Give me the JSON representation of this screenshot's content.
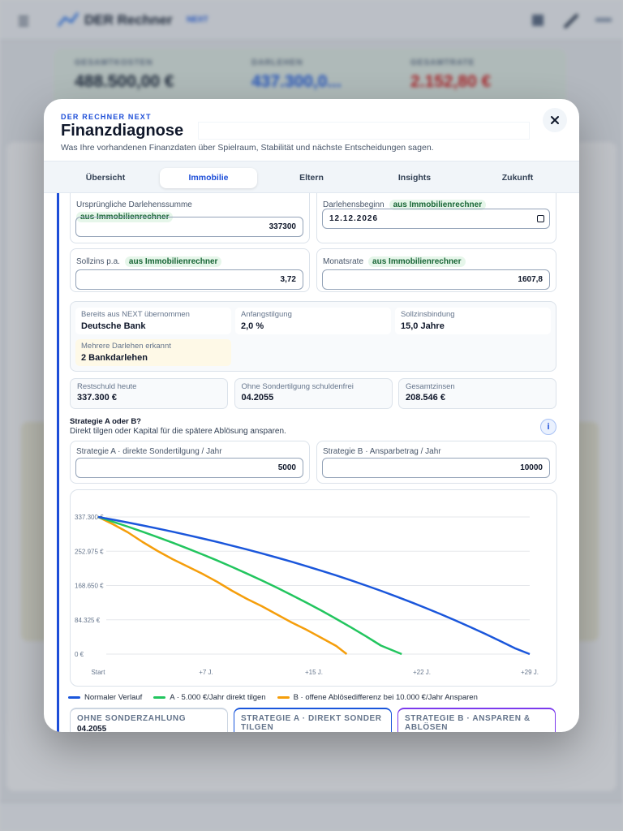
{
  "background": {
    "app_name": "DER Rechner",
    "app_badge": "NEXT",
    "stats": [
      {
        "label": "GESAMTKOSTEN",
        "value": "488.500,00 €"
      },
      {
        "label": "DARLEHEN",
        "value": "437.300,0..."
      },
      {
        "label": "GESAMTRATE",
        "value": "2.152,80 €"
      }
    ]
  },
  "header": {
    "brand": "DER RECHNER NEXT",
    "title": "Finanzdiagnose",
    "subtitle": "Was Ihre vorhandenen Finanzdaten über Spielraum, Stabilität und nächste Entscheidungen sagen."
  },
  "tabs": [
    "Übersicht",
    "Immobilie",
    "Eltern",
    "Insights",
    "Zukunft"
  ],
  "active_tab": 1,
  "fields": [
    {
      "label": "Ursprüngliche Darlehenssumme",
      "badge": "aus Immobilienrechner",
      "value": "337300"
    },
    {
      "label": "Darlehensbeginn",
      "badge": "aus Immobilienrechner",
      "value": "12.12.2026"
    },
    {
      "label": "Sollzins p.a.",
      "badge": "aus Immobilienrechner",
      "value": "3,72"
    },
    {
      "label": "Monatsrate",
      "badge": "aus Immobilienrechner",
      "value": "1607,8"
    }
  ],
  "info": [
    {
      "label": "Bereits aus NEXT übernommen",
      "value": "Deutsche Bank",
      "highlight": false
    },
    {
      "label": "Anfangstilgung",
      "value": "2,0 %",
      "highlight": false
    },
    {
      "label": "Sollzinsbindung",
      "value": "15,0 Jahre",
      "highlight": false
    },
    {
      "label": "Mehrere Darlehen erkannt",
      "value": "2 Bankdarlehen",
      "highlight": true
    }
  ],
  "summary": [
    {
      "label": "Restschuld heute",
      "value": "337.300 €"
    },
    {
      "label": "Ohne Sondertilgung schuldenfrei",
      "value": "04.2055"
    },
    {
      "label": "Gesamtzinsen",
      "value": "208.546 €"
    }
  ],
  "strategy": {
    "title": "Strategie A oder B?",
    "description": "Direkt tilgen oder Kapital für die spätere Ablösung ansparen.",
    "info_icon": "i",
    "inputs": [
      {
        "label": "Strategie A · direkte Sondertilgung / Jahr",
        "value": "5000"
      },
      {
        "label": "Strategie B · Ansparbetrag / Jahr",
        "value": "10000"
      }
    ]
  },
  "chart_data": {
    "type": "line",
    "xlim": [
      0,
      29
    ],
    "ylim": [
      0,
      337300
    ],
    "xticks": [
      {
        "value": 0,
        "label": "Start"
      },
      {
        "value": 7.25,
        "label": "+7 J."
      },
      {
        "value": 14.5,
        "label": "+15 J."
      },
      {
        "value": 21.75,
        "label": "+22 J."
      },
      {
        "value": 29,
        "label": "+29 J."
      }
    ],
    "yticks": [
      {
        "value": 0,
        "label": "0 €"
      },
      {
        "value": 84325,
        "label": "84.325 €"
      },
      {
        "value": 168650,
        "label": "168.650 €"
      },
      {
        "value": 252975,
        "label": "252.975 €"
      },
      {
        "value": 337300,
        "label": "337.300 €"
      }
    ],
    "grid": true,
    "legend": "bottom",
    "series": [
      {
        "name": "Normaler Verlauf",
        "color": "#1a56db",
        "x": [
          0,
          1,
          2,
          3,
          4,
          5,
          6,
          7,
          8,
          9,
          10,
          11,
          12,
          13,
          14,
          15,
          16,
          17,
          18,
          19,
          20,
          21,
          22,
          23,
          24,
          25,
          26,
          27,
          28,
          29
        ],
        "values": [
          337300,
          330554,
          323555,
          316297,
          308769,
          300962,
          292864,
          284464,
          275752,
          266717,
          257344,
          247623,
          237540,
          227083,
          216236,
          204986,
          193318,
          181215,
          168663,
          155643,
          142139,
          128133,
          113605,
          98538,
          82909,
          66699,
          49887,
          32448,
          14361,
          0
        ]
      },
      {
        "name": "A · 5.000 €/Jahr direkt tilgen",
        "color": "#22c55e",
        "x": [
          0,
          1,
          2,
          3,
          4,
          5,
          6,
          7,
          8,
          9,
          10,
          11,
          12,
          13,
          14,
          15,
          16,
          17,
          18,
          19,
          20.4
        ],
        "values": [
          337300,
          325554,
          313368,
          300731,
          287624,
          274030,
          259932,
          245305,
          230136,
          214405,
          198085,
          181160,
          163604,
          145397,
          126511,
          106924,
          86609,
          65534,
          43680,
          21011,
          0
        ]
      },
      {
        "name": "B · offene Ablösedifferenz bei 10.000 €/Jahr Ansparen",
        "color": "#f59e0b",
        "x": [
          0,
          1,
          2,
          3,
          4,
          5,
          6,
          7,
          8,
          9,
          10,
          11,
          12,
          13,
          14,
          15,
          16,
          16.7
        ],
        "values": [
          337300,
          319340,
          299380,
          275430,
          253480,
          233520,
          215560,
          197600,
          177640,
          155680,
          135720,
          117750,
          97790,
          77840,
          59880,
          39920,
          19960,
          0
        ]
      }
    ]
  },
  "result_cards": [
    {
      "title": "OHNE SONDERZAHLUNG",
      "value": "04.2055",
      "accent": "#cbd5e1"
    },
    {
      "title": "STRATEGIE A · DIREKT SONDER TILGEN",
      "accent": "#1a56db"
    },
    {
      "title": "STRATEGIE B · ANSPAREN & ABLÖSEN",
      "accent": "#7c3aed"
    }
  ]
}
